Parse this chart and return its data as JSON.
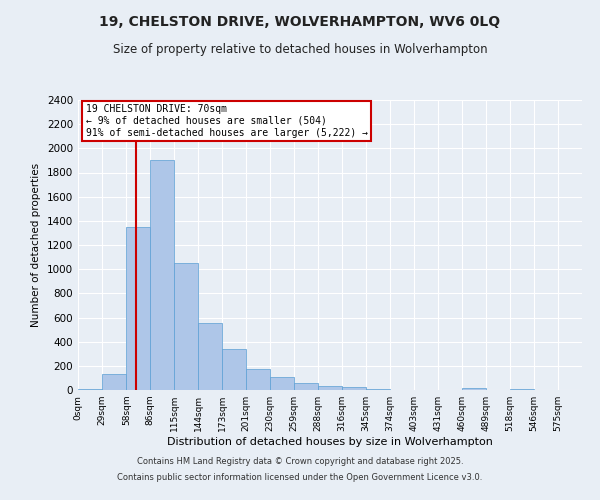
{
  "title": "19, CHELSTON DRIVE, WOLVERHAMPTON, WV6 0LQ",
  "subtitle": "Size of property relative to detached houses in Wolverhampton",
  "xlabel": "Distribution of detached houses by size in Wolverhampton",
  "ylabel": "Number of detached properties",
  "footer_line1": "Contains HM Land Registry data © Crown copyright and database right 2025.",
  "footer_line2": "Contains public sector information licensed under the Open Government Licence v3.0.",
  "annotation_title": "19 CHELSTON DRIVE: 70sqm",
  "annotation_line2": "← 9% of detached houses are smaller (504)",
  "annotation_line3": "91% of semi-detached houses are larger (5,222) →",
  "property_size": 70,
  "bar_left_edges": [
    0,
    29,
    58,
    86,
    115,
    144,
    173,
    201,
    230,
    259,
    288,
    316,
    345,
    374,
    403,
    431,
    460,
    489,
    518,
    546
  ],
  "bar_heights": [
    10,
    130,
    1350,
    1900,
    1050,
    555,
    340,
    175,
    105,
    58,
    32,
    22,
    5,
    2,
    2,
    0,
    15,
    0,
    5,
    2
  ],
  "tick_labels": [
    "0sqm",
    "29sqm",
    "58sqm",
    "86sqm",
    "115sqm",
    "144sqm",
    "173sqm",
    "201sqm",
    "230sqm",
    "259sqm",
    "288sqm",
    "316sqm",
    "345sqm",
    "374sqm",
    "403sqm",
    "431sqm",
    "460sqm",
    "489sqm",
    "518sqm",
    "546sqm",
    "575sqm"
  ],
  "bar_color": "#aec6e8",
  "bar_edge_color": "#5a9fd4",
  "red_line_color": "#cc0000",
  "annotation_box_color": "#cc0000",
  "background_color": "#e8eef5",
  "grid_color": "#ffffff",
  "ylim": [
    0,
    2400
  ],
  "yticks": [
    0,
    200,
    400,
    600,
    800,
    1000,
    1200,
    1400,
    1600,
    1800,
    2000,
    2200,
    2400
  ]
}
